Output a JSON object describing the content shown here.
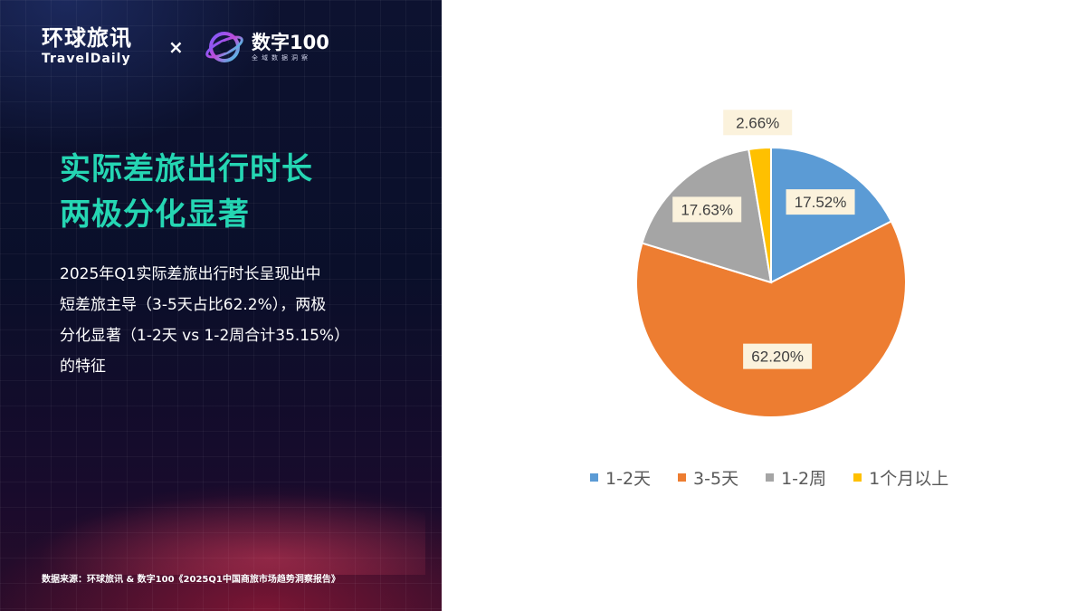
{
  "brand": {
    "travel_cn": "环球旅讯",
    "travel_en": "TravelDaily",
    "cross": "×",
    "partner_name": "数字100",
    "partner_tagline": "全域数据洞察"
  },
  "headline": [
    "实际差旅出行时长",
    "两极分化显著"
  ],
  "body_lines": [
    "2025年Q1实际差旅出行时长呈现出中",
    "短差旅主导（3-5天占比62.2%），两极",
    "分化显著（1-2天 vs 1-2周合计35.15%）",
    "的特征"
  ],
  "source": "数据来源：环球旅讯 & 数字100《2025Q1中国商旅市场趋势洞察报告》",
  "chart_data": {
    "type": "pie",
    "categories": [
      "1-2天",
      "3-5天",
      "1-2周",
      "1个月以上"
    ],
    "values": [
      17.52,
      62.2,
      17.63,
      2.66
    ],
    "data_labels": [
      "17.52%",
      "62.20%",
      "17.63%",
      "2.66%"
    ],
    "colors": [
      "#5b9bd5",
      "#ed7d31",
      "#a5a5a5",
      "#ffc000"
    ],
    "start_angle_deg": 0,
    "direction": "clockwise",
    "legend_position": "bottom"
  }
}
